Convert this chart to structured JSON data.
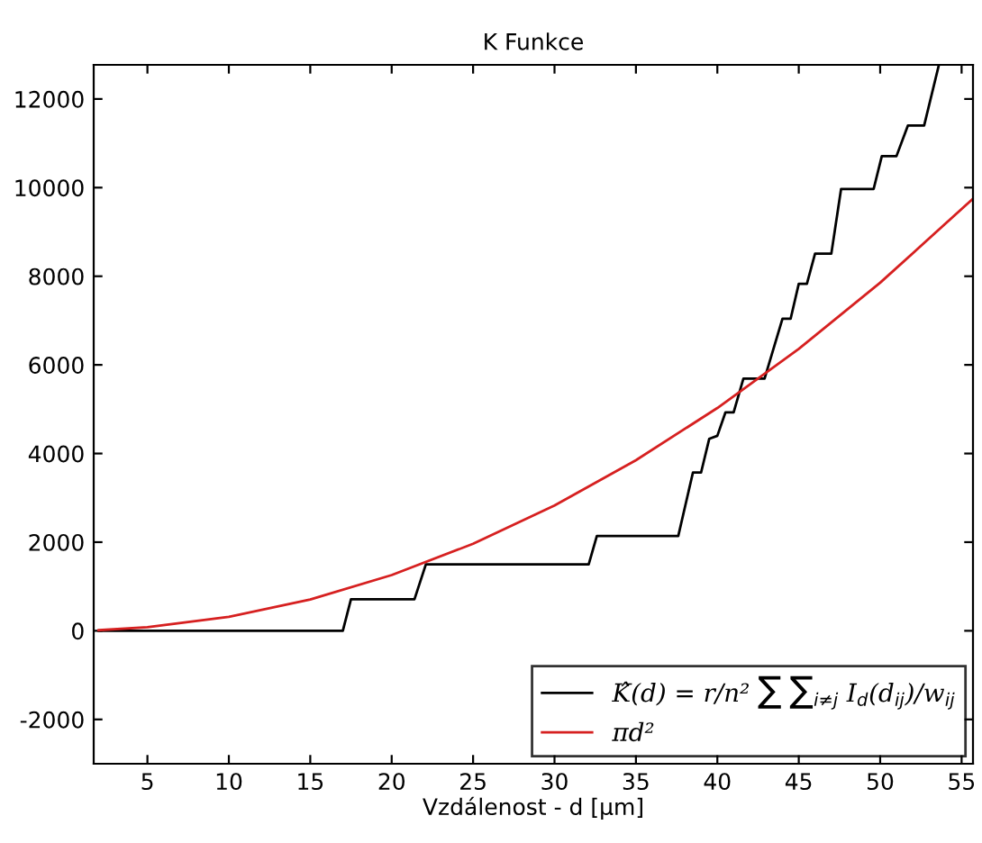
{
  "chart_data": {
    "type": "line",
    "title": "K Funkce",
    "xlabel": "Vzdálenost - d [µm]",
    "xlim": [
      1.7,
      55.7
    ],
    "ylim": [
      -3000,
      12770
    ],
    "xticks": [
      5,
      10,
      15,
      20,
      25,
      30,
      35,
      40,
      45,
      50,
      55
    ],
    "yticks": [
      -2000,
      0,
      2000,
      4000,
      6000,
      8000,
      10000,
      12000
    ],
    "legend": "bottom right",
    "grid": false,
    "marker": "none",
    "line_style": "solid",
    "series": [
      {
        "name": "K̂(d) = r/n² ∑ ∑$_{i≠j}$ I$_{d}$(d$_{ij}$)/w$_{ij}$",
        "color": "#000000",
        "x": [
          2,
          17.0,
          17.5,
          21.4,
          22.1,
          32.1,
          32.6,
          37.6,
          38.5,
          39.0,
          39.5,
          40.0,
          40.5,
          41.0,
          41.6,
          42.9,
          44.0,
          44.5,
          45.0,
          45.5,
          46.0,
          47.0,
          47.6,
          49.6,
          50.1,
          51.0,
          51.7,
          52.7,
          53.6
        ],
        "values": [
          0,
          0,
          710,
          710,
          1500,
          1500,
          2140,
          2140,
          3570,
          3570,
          4330,
          4400,
          4930,
          4930,
          5690,
          5690,
          7040,
          7040,
          7830,
          7830,
          8510,
          8510,
          9970,
          9970,
          10710,
          10710,
          11400,
          11400,
          12760
        ]
      },
      {
        "name": "πd²",
        "color": "#d62020",
        "x": [
          2,
          5,
          10,
          15,
          20,
          25,
          30,
          35,
          40,
          45,
          50,
          55.7
        ],
        "values": [
          13,
          80,
          314,
          707,
          1257,
          1963,
          2827,
          3848,
          5027,
          6362,
          7854,
          9750
        ]
      }
    ]
  }
}
